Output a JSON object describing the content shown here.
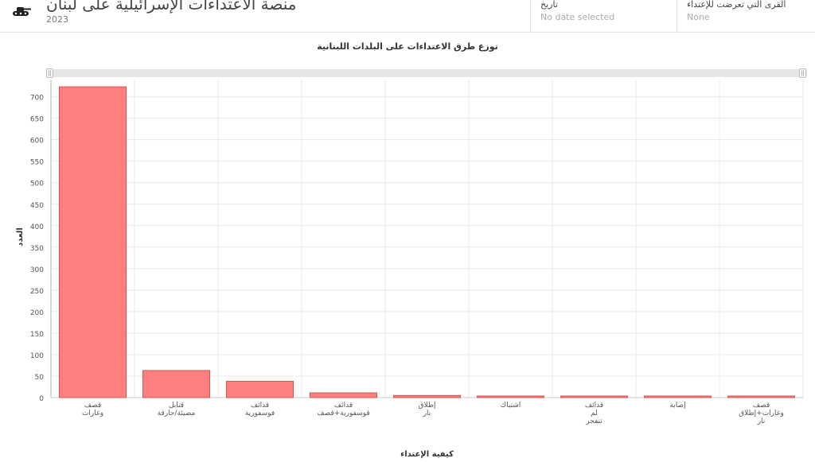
{
  "header": {
    "title": "منصة الاعتداءات الإسرائيلية على لبنان",
    "year": "2023",
    "logo_icon": "tank-icon"
  },
  "filters": {
    "date": {
      "label": "تاريخ",
      "value": "No date selected"
    },
    "villages": {
      "label": "القرى التي تعرضت للإعتداء",
      "value": "None"
    }
  },
  "chart_data": {
    "type": "bar",
    "title": "توزع طرق الاعتداءات على البلدات اللبنانية",
    "xlabel": "كيفية الإعتداء",
    "ylabel": "العدد",
    "ylim": [
      0,
      740
    ],
    "yticks": [
      0,
      50,
      100,
      150,
      200,
      250,
      300,
      350,
      400,
      450,
      500,
      550,
      600,
      650,
      700
    ],
    "grid": true,
    "bar_color": "#ff7f7f",
    "bar_border": "#d9534f",
    "categories": [
      [
        "قصف",
        "وغارات"
      ],
      [
        "قنابل",
        "مضيئة/حارقة"
      ],
      [
        "قذائف",
        "فوسفورية"
      ],
      [
        "قذائف",
        "فوسفورية+قصف"
      ],
      [
        "إطلاق",
        "نار"
      ],
      [
        "اشتباك"
      ],
      [
        "قذائف",
        "لم",
        "تنفجر"
      ],
      [
        "إصابة"
      ],
      [
        "قصف",
        "وغارات+إطلاق",
        "نار"
      ]
    ],
    "values": [
      723,
      63,
      38,
      11,
      5,
      3,
      2,
      2,
      2
    ]
  }
}
